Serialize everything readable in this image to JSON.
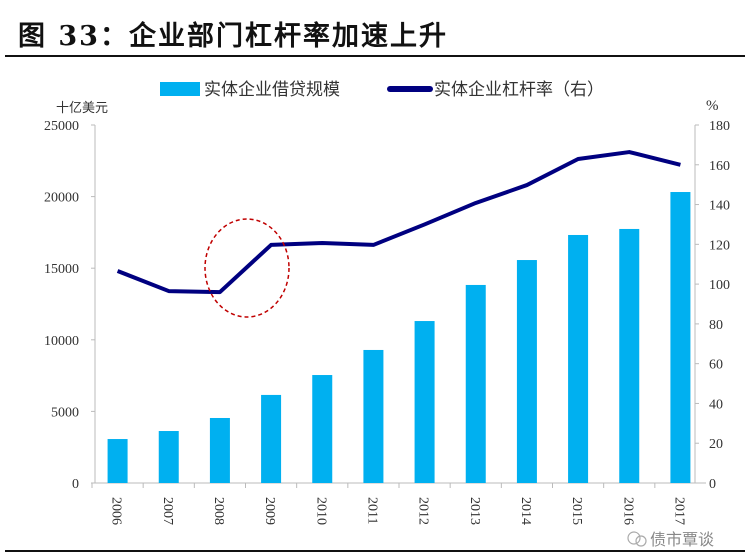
{
  "title": "图 33：企业部门杠杆率加速上升",
  "watermark": "债市覃谈",
  "chart_data": {
    "type": "bar+line",
    "categories": [
      "2006",
      "2007",
      "2008",
      "2009",
      "2010",
      "2011",
      "2012",
      "2013",
      "2014",
      "2015",
      "2016",
      "2017"
    ],
    "series": [
      {
        "name": "实体企业借贷规模",
        "type": "bar",
        "axis": "left",
        "color": "#00B0F0",
        "values": [
          3070,
          3630,
          4540,
          6150,
          7540,
          9290,
          11310,
          13830,
          15570,
          17320,
          17740,
          20320
        ]
      },
      {
        "name": "实体企业杠杆率（右）",
        "type": "line",
        "axis": "right",
        "color": "#000080",
        "values": [
          106.6,
          96.5,
          96,
          119.7,
          120.7,
          119.7,
          130,
          140.8,
          149.8,
          162.9,
          166.4,
          160
        ]
      }
    ],
    "ylabel": "十亿美元",
    "y2label": "%",
    "ylim": [
      0,
      25000
    ],
    "yticks": [
      0,
      5000,
      10000,
      15000,
      20000,
      25000
    ],
    "y2lim": [
      0,
      180
    ],
    "y2ticks": [
      0,
      20,
      40,
      60,
      80,
      100,
      120,
      140,
      160,
      180
    ],
    "legend": "top",
    "grid": false,
    "annotation": "dashed red ellipse around 2008-2009"
  }
}
